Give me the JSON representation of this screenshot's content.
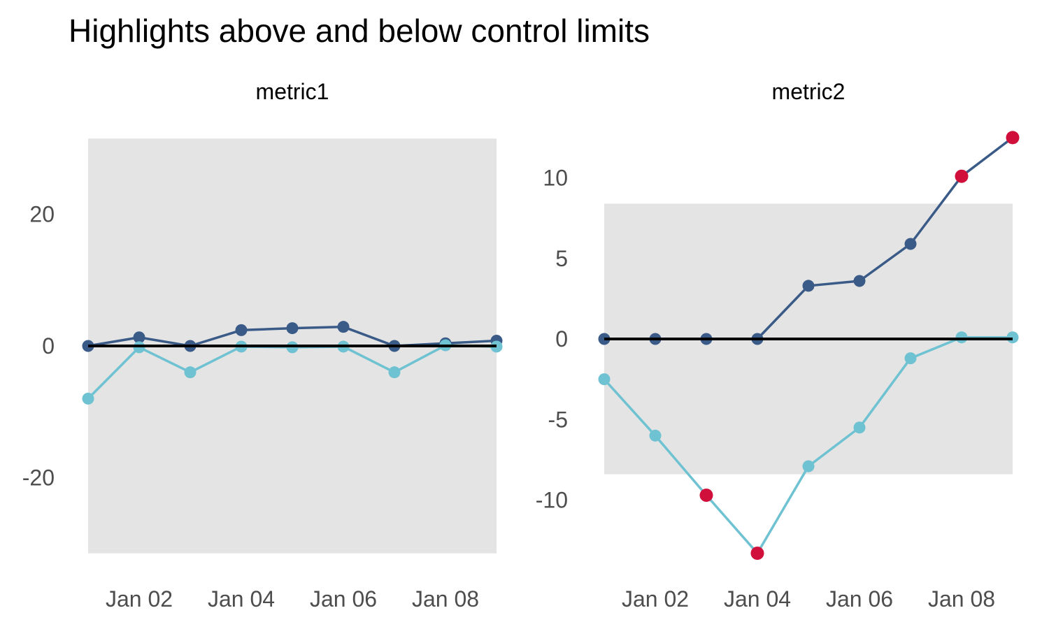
{
  "title": "Highlights above and below control limits",
  "colors": {
    "series_dark": "#3A5A87",
    "series_light": "#6FC2D1",
    "signal": "#D0103A",
    "control_band": "#E4E4E4",
    "center_line": "#000000",
    "axis_text": "#4D4D4D",
    "title_text": "#000000"
  },
  "chart_data": [
    {
      "type": "line",
      "title": "metric1",
      "x_tick_labels": [
        "Jan 02",
        "Jan 04",
        "Jan 06",
        "Jan 08"
      ],
      "x_points": [
        "Jan 01",
        "Jan 02",
        "Jan 03",
        "Jan 04",
        "Jan 05",
        "Jan 06",
        "Jan 07",
        "Jan 08",
        "Jan 09"
      ],
      "y_ticks": [
        20,
        0,
        -20
      ],
      "ylim": [
        -35,
        35
      ],
      "center_line": 0,
      "upper_limit": 31.5,
      "lower_limit": -31.5,
      "grid": "off",
      "legend": "none",
      "series": [
        {
          "name": "metric1-upper-series",
          "color": "#3A5A87",
          "values": [
            0,
            1.3,
            0,
            2.4,
            2.7,
            2.9,
            0,
            0.4,
            0.8
          ],
          "signal": [
            false,
            false,
            false,
            false,
            false,
            false,
            false,
            false,
            false
          ]
        },
        {
          "name": "metric1-lower-series",
          "color": "#6FC2D1",
          "values": [
            -8.0,
            -0.2,
            -4.0,
            -0.1,
            -0.2,
            -0.1,
            -4.0,
            0.1,
            -0.1
          ],
          "signal": [
            false,
            false,
            false,
            false,
            false,
            false,
            false,
            false,
            false
          ]
        }
      ]
    },
    {
      "type": "line",
      "title": "metric2",
      "x_tick_labels": [
        "Jan 02",
        "Jan 04",
        "Jan 06",
        "Jan 08"
      ],
      "x_points": [
        "Jan 01",
        "Jan 02",
        "Jan 03",
        "Jan 04",
        "Jan 05",
        "Jan 06",
        "Jan 07",
        "Jan 08",
        "Jan 09"
      ],
      "y_ticks": [
        10,
        5,
        0,
        -5,
        -10
      ],
      "ylim": [
        -14.5,
        13.5
      ],
      "center_line": 0,
      "upper_limit": 8.4,
      "lower_limit": -8.4,
      "grid": "off",
      "legend": "none",
      "series": [
        {
          "name": "metric2-upper-series",
          "color": "#3A5A87",
          "values": [
            0,
            0,
            0,
            0,
            3.3,
            3.6,
            5.9,
            10.1,
            12.5
          ],
          "signal": [
            false,
            false,
            false,
            false,
            false,
            false,
            false,
            true,
            true
          ]
        },
        {
          "name": "metric2-lower-series",
          "color": "#6FC2D1",
          "values": [
            -2.5,
            -6.0,
            -9.7,
            -13.3,
            -7.9,
            -5.5,
            -1.2,
            0.1,
            0.1
          ],
          "signal": [
            false,
            false,
            true,
            true,
            false,
            false,
            false,
            false,
            false
          ]
        }
      ]
    }
  ]
}
